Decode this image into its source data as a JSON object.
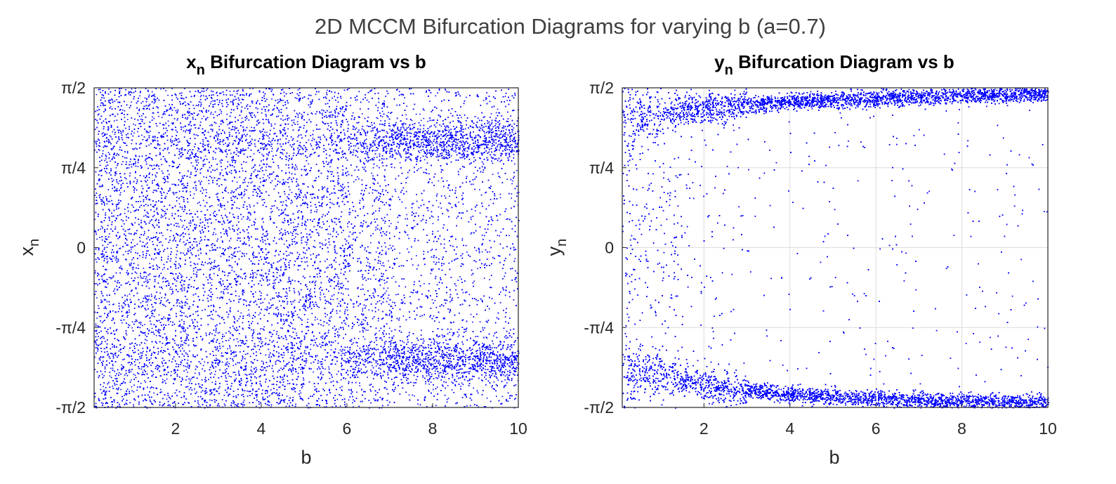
{
  "figure": {
    "suptitle": "2D MCCM Bifurcation Diagrams for varying b (a=0.7)"
  },
  "chart_data": [
    {
      "type": "scatter",
      "title_main": "x",
      "title_sub": "n",
      "title_rest": " Bifurcation Diagram vs b",
      "xlabel": "b",
      "ylabel_main": "x",
      "ylabel_sub": "n",
      "xlim": [
        0.1,
        10
      ],
      "ylim": [
        -1.5708,
        1.5708
      ],
      "xticks": [
        2,
        4,
        6,
        8,
        10
      ],
      "xtick_labels": [
        "2",
        "4",
        "6",
        "8",
        "10"
      ],
      "yticks": [
        -1.5708,
        -0.7854,
        0,
        0.7854,
        1.5708
      ],
      "ytick_labels": [
        "-π/2",
        "-π/4",
        "0",
        "π/4",
        "π/2"
      ],
      "grid": false,
      "marker_color": "#0000ff",
      "series": [
        {
          "description_of_distribution": "dense uniform chaos across full range for b<6; for b>6 points concentrate near ±1.15 with vertical streaks",
          "band_points": [
            {
              "b": 0.5,
              "y_min": -1.5708,
              "y_max": 1.5708
            },
            {
              "b": 2.0,
              "y_min": -1.5708,
              "y_max": 1.5708
            },
            {
              "b": 4.0,
              "y_min": -1.5708,
              "y_max": 1.5708
            },
            {
              "b": 6.0,
              "y_min": -1.5708,
              "y_max": 1.5708
            },
            {
              "b": 7.0,
              "y_min": -1.5708,
              "y_max": 1.5708
            },
            {
              "b": 8.0,
              "y_min": -1.5708,
              "y_max": 1.5708
            },
            {
              "b": 9.0,
              "y_min": -1.5708,
              "y_max": 1.5708
            },
            {
              "b": 10.0,
              "y_min": -1.5708,
              "y_max": 1.5708
            }
          ],
          "clusters_high_b": [
            {
              "b_from": 7.0,
              "b_to": 10.0,
              "center": 1.05
            },
            {
              "b_from": 7.0,
              "b_to": 10.0,
              "center": -1.1
            }
          ]
        }
      ]
    },
    {
      "type": "scatter",
      "title_main": "y",
      "title_sub": "n",
      "title_rest": " Bifurcation Diagram vs b",
      "xlabel": "b",
      "ylabel_main": "y",
      "ylabel_sub": "n",
      "xlim": [
        0.1,
        10
      ],
      "ylim": [
        -1.5708,
        1.5708
      ],
      "xticks": [
        2,
        4,
        6,
        8,
        10
      ],
      "xtick_labels": [
        "2",
        "4",
        "6",
        "8",
        "10"
      ],
      "yticks": [
        -1.5708,
        -0.7854,
        0,
        0.7854,
        1.5708
      ],
      "ytick_labels": [
        "-π/2",
        "-π/4",
        "0",
        "π/4",
        "π/2"
      ],
      "grid": true,
      "marker_color": "#0000ff",
      "series": [
        {
          "description_of_distribution": "points fill the whole range for small b; as b increases they concentrate in bands near +π/2 and -π/2 with sparse points in between",
          "upper_band": [
            {
              "b": 0.5,
              "center": 1.3
            },
            {
              "b": 2.0,
              "center": 1.38
            },
            {
              "b": 4.0,
              "center": 1.44
            },
            {
              "b": 6.0,
              "center": 1.47
            },
            {
              "b": 8.0,
              "center": 1.5
            },
            {
              "b": 10.0,
              "center": 1.52
            }
          ],
          "lower_band": [
            {
              "b": 0.5,
              "center": -1.2
            },
            {
              "b": 2.0,
              "center": -1.35
            },
            {
              "b": 4.0,
              "center": -1.44
            },
            {
              "b": 6.0,
              "center": -1.48
            },
            {
              "b": 8.0,
              "center": -1.51
            },
            {
              "b": 10.0,
              "center": -1.52
            }
          ]
        }
      ]
    }
  ]
}
